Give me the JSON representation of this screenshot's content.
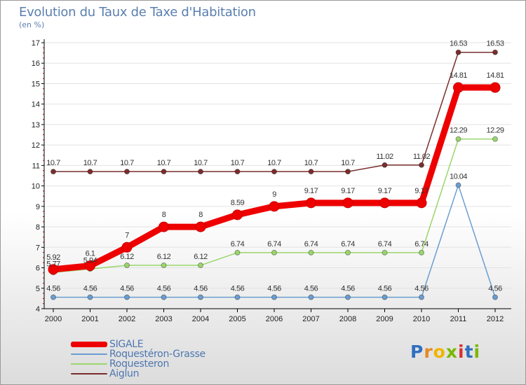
{
  "title": "Evolution du Taux de Taxe d'Habitation",
  "subtitle": "(en %)",
  "chart_data": {
    "type": "line",
    "categories": [
      "2000",
      "2001",
      "2002",
      "2003",
      "2004",
      "2005",
      "2006",
      "2007",
      "2008",
      "2009",
      "2010",
      "2011",
      "2012"
    ],
    "ylim": [
      4,
      17
    ],
    "yticks": [
      "4",
      "5",
      "6",
      "7",
      "8",
      "9",
      "10",
      "11",
      "12",
      "13",
      "14",
      "15",
      "16",
      "17"
    ],
    "series": [
      {
        "name": "SIGALE",
        "color": "#ee0000",
        "values": [
          5.92,
          6.1,
          7,
          8,
          8,
          8.59,
          9,
          9.17,
          9.17,
          9.17,
          9.17,
          14.81,
          14.81
        ],
        "labels": [
          "5.92",
          "6.1",
          "7",
          "8",
          "8",
          "8.59",
          "9",
          "9.17",
          "9.17",
          "9.17",
          "9.17",
          "14.81",
          "14.81"
        ]
      },
      {
        "name": "Roquestéron-Grasse",
        "color": "#6a9ed0",
        "values": [
          4.56,
          4.56,
          4.56,
          4.56,
          4.56,
          4.56,
          4.56,
          4.56,
          4.56,
          4.56,
          4.56,
          10.04,
          4.56
        ],
        "labels": [
          "4.56",
          "4.56",
          "4.56",
          "4.56",
          "4.56",
          "4.56",
          "4.56",
          "4.56",
          "4.56",
          "4.56",
          "4.56",
          "10.04",
          "4.56"
        ]
      },
      {
        "name": "Roquesteron",
        "color": "#9ad66c",
        "values": [
          5.77,
          5.94,
          6.12,
          6.12,
          6.12,
          6.74,
          6.74,
          6.74,
          6.74,
          6.74,
          6.74,
          12.29,
          12.29
        ],
        "labels": [
          "5.77",
          "5.94",
          "6.12",
          "6.12",
          "6.12",
          "6.74",
          "6.74",
          "6.74",
          "6.74",
          "6.74",
          "6.74",
          "12.29",
          "12.29"
        ]
      },
      {
        "name": "Aiglun",
        "color": "#7a2e2e",
        "values": [
          10.7,
          10.7,
          10.7,
          10.7,
          10.7,
          10.7,
          10.7,
          10.7,
          10.7,
          11.02,
          11.02,
          16.53,
          16.53
        ],
        "labels": [
          "10.7",
          "10.7",
          "10.7",
          "10.7",
          "10.7",
          "10.7",
          "10.7",
          "10.7",
          "10.7",
          "11.02",
          "11.02",
          "16.53",
          "16.53"
        ]
      }
    ]
  },
  "legend": {
    "sigale": "SIGALE",
    "roqueteron_grasse": "Roquestéron-Grasse",
    "roquesteron": "Roquesteron",
    "aiglun": "Aiglun"
  },
  "logo": {
    "text": "Proxiti",
    "letters": [
      "P",
      "r",
      "o",
      "x",
      "i",
      "t",
      "i"
    ],
    "colors": [
      "#2f6fc0",
      "#e58a1f",
      "#f0b400",
      "#7ab800",
      "#d93030",
      "#2f6fc0",
      "#7ab800"
    ]
  }
}
